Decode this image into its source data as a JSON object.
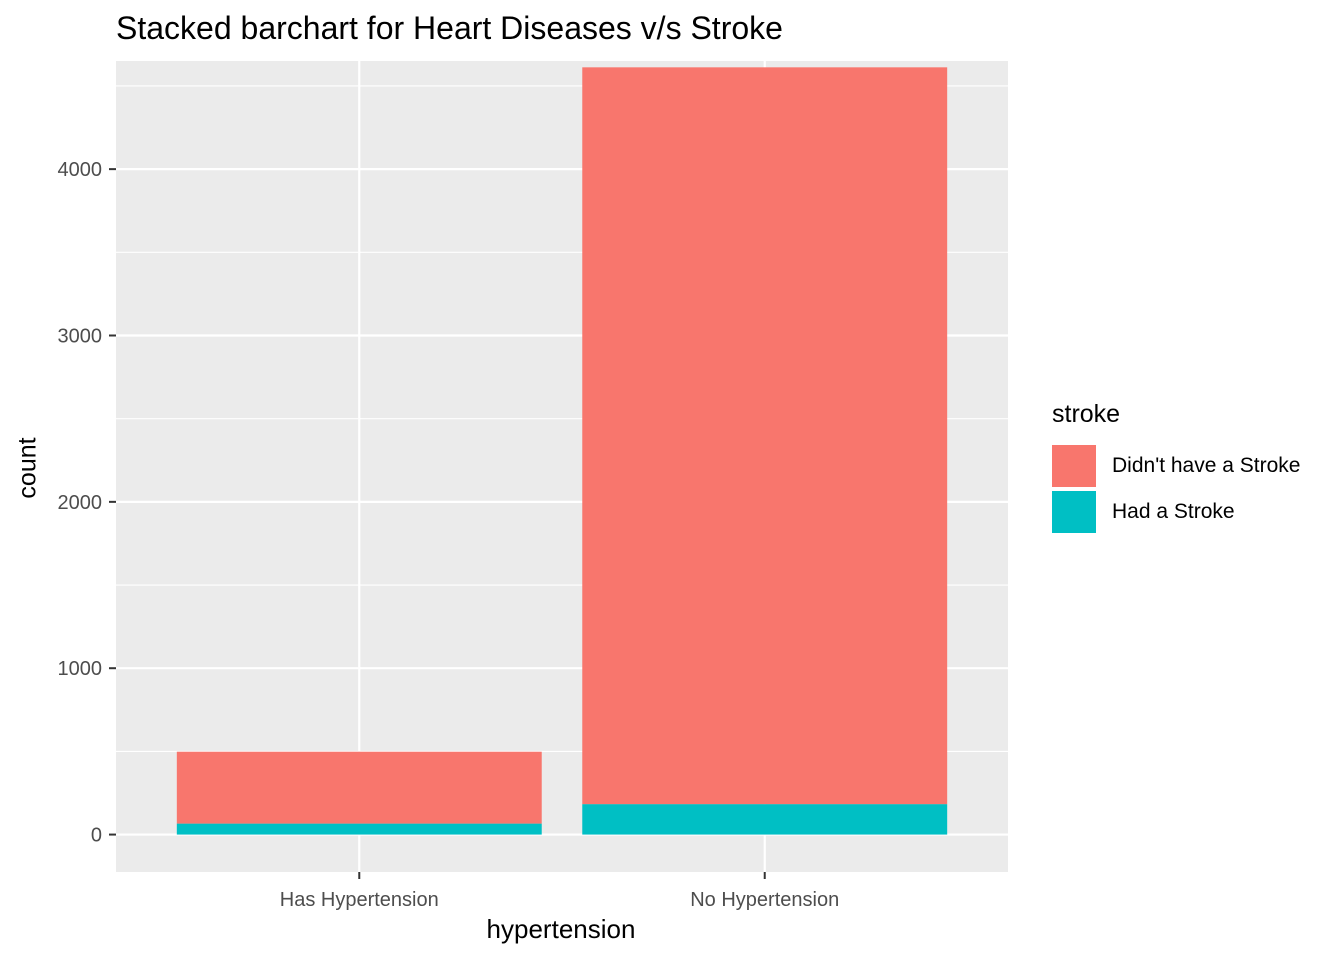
{
  "chart_data": {
    "type": "bar",
    "stacked": true,
    "title": "Stacked barchart for Heart Diseases v/s Stroke",
    "xlabel": "hypertension",
    "ylabel": "count",
    "categories": [
      "Has Hypertension",
      "No Hypertension"
    ],
    "series": [
      {
        "name": "Had a Stroke",
        "values": [
          66,
          183
        ],
        "color": "#00BFC4"
      },
      {
        "name": "Didn't have a Stroke",
        "values": [
          432,
          4429
        ],
        "color": "#F8766D"
      }
    ],
    "yticks": [
      0,
      1000,
      2000,
      3000,
      4000
    ],
    "ylim": [
      -225,
      4650
    ],
    "grid": true,
    "legend": {
      "title": "stroke",
      "position": "right",
      "entries": [
        {
          "label": "Didn't have a Stroke",
          "color": "#F8766D"
        },
        {
          "label": "Had a Stroke",
          "color": "#00BFC4"
        }
      ]
    }
  }
}
